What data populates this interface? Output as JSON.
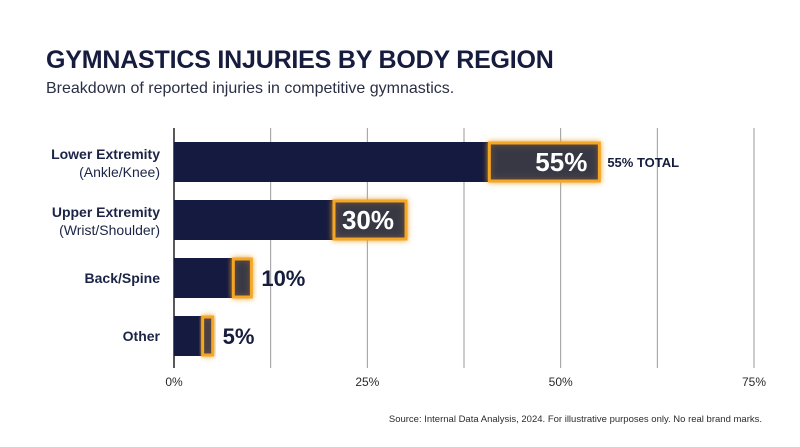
{
  "header": {
    "title": "GYMNASTICS INJURIES BY BODY REGION",
    "subtitle": "Breakdown of reported injuries in competitive gymnastics."
  },
  "chart_data": {
    "type": "bar",
    "orientation": "horizontal",
    "categories": [
      {
        "line1": "Lower Extremity",
        "line2": "(Ankle/Knee)"
      },
      {
        "line1": "Upper Extremity",
        "line2": "(Wrist/Shoulder)"
      },
      {
        "line1": "Back/Spine",
        "line2": ""
      },
      {
        "line1": "Other",
        "line2": ""
      }
    ],
    "values": [
      55,
      30,
      10,
      5
    ],
    "value_labels": [
      "55%",
      "30%",
      "10%",
      "5%"
    ],
    "annotation": "55% TOTAL",
    "x_ticks": [
      0,
      25,
      50,
      75
    ],
    "x_tick_labels": [
      "0%",
      "25%",
      "50%",
      "75%"
    ],
    "xlim": [
      0,
      75
    ],
    "grid": true,
    "colors": {
      "bar": "#141a40",
      "highlight": "#f5a623",
      "highlight_fill": "#3a3a44"
    }
  },
  "footer": {
    "source": "Source: Internal Data Analysis, 2024. For illustrative purposes only. No real brand marks."
  }
}
